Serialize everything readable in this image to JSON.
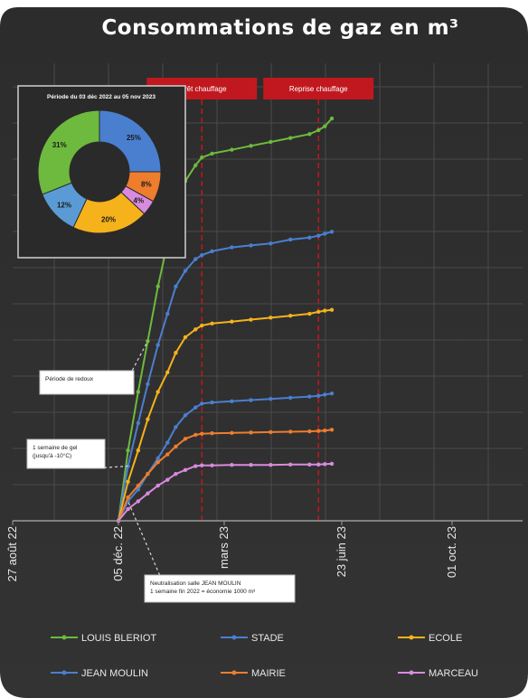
{
  "title": "Consommations de gaz en m³",
  "chart_data": [
    {
      "type": "line",
      "title": "Consommations de gaz en m³",
      "x_ticks": [
        "27 août 22",
        "05 déc. 22",
        "mars 23",
        "23 juin 23",
        "01 oct. 23"
      ],
      "grid": true,
      "legend_position": "bottom",
      "x": [
        "2022-12-05",
        "2022-12-20",
        "2023-01-05",
        "2023-01-20",
        "2023-02-05",
        "2023-02-20",
        "2023-03-05",
        "2023-03-20",
        "2023-04-05",
        "2023-04-15",
        "2023-05-01",
        "2023-06-01",
        "2023-07-01",
        "2023-08-01",
        "2023-09-01",
        "2023-10-01",
        "2023-10-15",
        "2023-10-25",
        "2023-11-05"
      ],
      "series": [
        {
          "name": "LOUIS BLERIOT",
          "color": "#6dba3e",
          "values": [
            0,
            18,
            33,
            46,
            60,
            71,
            80,
            87,
            91,
            93,
            94,
            95,
            96,
            97,
            98,
            99,
            100,
            101,
            103
          ]
        },
        {
          "name": "STADE",
          "color": "#4a7fd0",
          "values": [
            0,
            14,
            25,
            35,
            45,
            53,
            60,
            64,
            67,
            68,
            69,
            70,
            70.5,
            71,
            72,
            72.5,
            73,
            73.5,
            74
          ]
        },
        {
          "name": "ECOLE",
          "color": "#f5b21b",
          "values": [
            0,
            10,
            18,
            26,
            33,
            38,
            43,
            47,
            49,
            50,
            50.5,
            51,
            51.5,
            52,
            52.5,
            53,
            53.5,
            53.8,
            54
          ]
        },
        {
          "name": "JEAN MOULIN",
          "color": "#4a7fd0",
          "values": [
            0,
            5,
            8,
            12,
            16,
            20,
            24,
            27,
            29,
            30,
            30.3,
            30.6,
            30.9,
            31.2,
            31.5,
            31.8,
            32,
            32.3,
            32.6
          ]
        },
        {
          "name": "MAIRIE",
          "color": "#ee7d2e",
          "values": [
            0,
            6,
            9,
            12,
            15,
            17,
            19,
            21,
            22,
            22.3,
            22.4,
            22.5,
            22.6,
            22.7,
            22.8,
            22.9,
            23,
            23.1,
            23.3
          ]
        },
        {
          "name": "MARCEAU",
          "color": "#d98adf",
          "values": [
            0,
            3,
            5,
            7,
            9,
            10.5,
            12,
            13,
            14,
            14.2,
            14.2,
            14.3,
            14.3,
            14.3,
            14.4,
            14.4,
            14.4,
            14.5,
            14.6
          ]
        }
      ]
    },
    {
      "type": "pie",
      "title": "Période du 03 déc 2022 au 05 nov 2023",
      "slices": [
        {
          "label": "25%",
          "value": 25,
          "color": "#4a7fd0"
        },
        {
          "label": "8%",
          "value": 8,
          "color": "#ee7d2e"
        },
        {
          "label": "4%",
          "value": 4,
          "color": "#d98adf"
        },
        {
          "label": "20%",
          "value": 20,
          "color": "#f5b21b"
        },
        {
          "label": "12%",
          "value": 12,
          "color": "#5b9bd5"
        },
        {
          "label": "31%",
          "value": 31,
          "color": "#6dba3e"
        }
      ]
    }
  ],
  "events": [
    {
      "label": "Arrêt chauffage",
      "x": "2023-04-15"
    },
    {
      "label": "Reprise chauffage",
      "x": "2023-10-15"
    }
  ],
  "annotations": [
    {
      "lines": [
        "Période de redoux"
      ],
      "x": "2023-01-20",
      "series": "LOUIS BLERIOT"
    },
    {
      "lines": [
        "1 semaine de gel",
        "(jusqu'à -10°C)"
      ],
      "x": "2022-12-20",
      "series": "STADE"
    },
    {
      "lines": [
        "Neutralisation salle JEAN MOULIN",
        "1 semaine fin 2022 = économie 1000 m³"
      ],
      "x": "2022-12-20",
      "series": "JEAN MOULIN"
    }
  ],
  "colors": {
    "background": "#2e2e2e",
    "event_red": "#c0181e",
    "grid": "#4a4a4a"
  }
}
